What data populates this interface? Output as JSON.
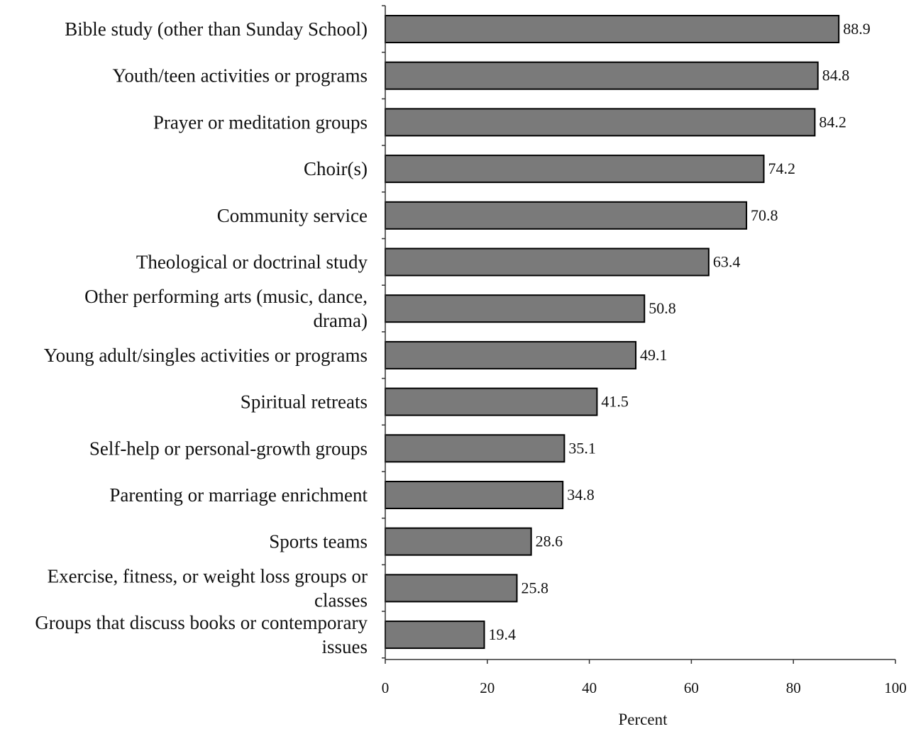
{
  "chart_data": {
    "type": "bar",
    "orientation": "horizontal",
    "title": "",
    "xlabel": "Percent",
    "ylabel": "",
    "xlim": [
      0,
      100
    ],
    "xticks": [
      0,
      20,
      40,
      60,
      80,
      100
    ],
    "grid": false,
    "legend": "none",
    "colors": {
      "bar_fill": "#7a7a7a",
      "bar_stroke": "#000000"
    },
    "categories": [
      [
        "Bible study (other than Sunday School)"
      ],
      [
        "Youth/teen activities or programs"
      ],
      [
        "Prayer or meditation groups"
      ],
      [
        "Choir(s)"
      ],
      [
        "Community service"
      ],
      [
        "Theological or doctrinal study"
      ],
      [
        "Other performing arts (music, dance,",
        "drama)"
      ],
      [
        "Young adult/singles activities or programs"
      ],
      [
        "Spiritual retreats"
      ],
      [
        "Self-help or personal-growth groups"
      ],
      [
        "Parenting or marriage enrichment"
      ],
      [
        "Sports teams"
      ],
      [
        "Exercise, fitness, or weight loss groups or",
        "classes"
      ],
      [
        "Groups that discuss books or contemporary",
        "issues"
      ]
    ],
    "values": [
      88.9,
      84.8,
      84.2,
      74.2,
      70.8,
      63.4,
      50.8,
      49.1,
      41.5,
      35.1,
      34.8,
      28.6,
      25.8,
      19.4
    ],
    "value_labels": [
      "88.9",
      "84.8",
      "84.2",
      "74.2",
      "70.8",
      "63.4",
      "50.8",
      "49.1",
      "41.5",
      "35.1",
      "34.8",
      "28.6",
      "25.8",
      "19.4"
    ]
  }
}
